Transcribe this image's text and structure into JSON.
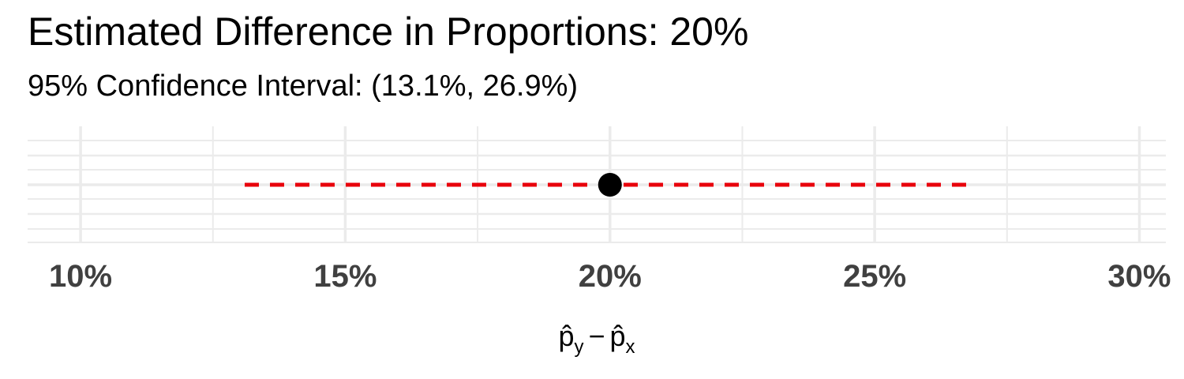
{
  "title": "Estimated Difference in Proportions: 20%",
  "subtitle": "95% Confidence Interval: (13.1%, 26.9%)",
  "chart_data": {
    "type": "scatter",
    "title": "Estimated Difference in Proportions: 20%",
    "subtitle": "95% Confidence Interval: (13.1%, 26.9%)",
    "xlabel": "p̂y − p̂x",
    "ylabel": "",
    "xlim": [
      9,
      30.5
    ],
    "x_ticks": [
      10,
      15,
      20,
      25,
      30
    ],
    "x_tick_labels": [
      "10%",
      "15%",
      "20%",
      "25%",
      "30%"
    ],
    "x_unit": "%",
    "grid": true,
    "legend": "none",
    "point": {
      "x": 20,
      "color": "#000000"
    },
    "interval": {
      "lower": 13.1,
      "upper": 26.9,
      "color": "#e8000b",
      "linestyle": "dashed"
    }
  },
  "colors": {
    "grid": "#ebebeb",
    "interval": "#e8000b",
    "point": "#000000",
    "tick_text": "#404040"
  }
}
